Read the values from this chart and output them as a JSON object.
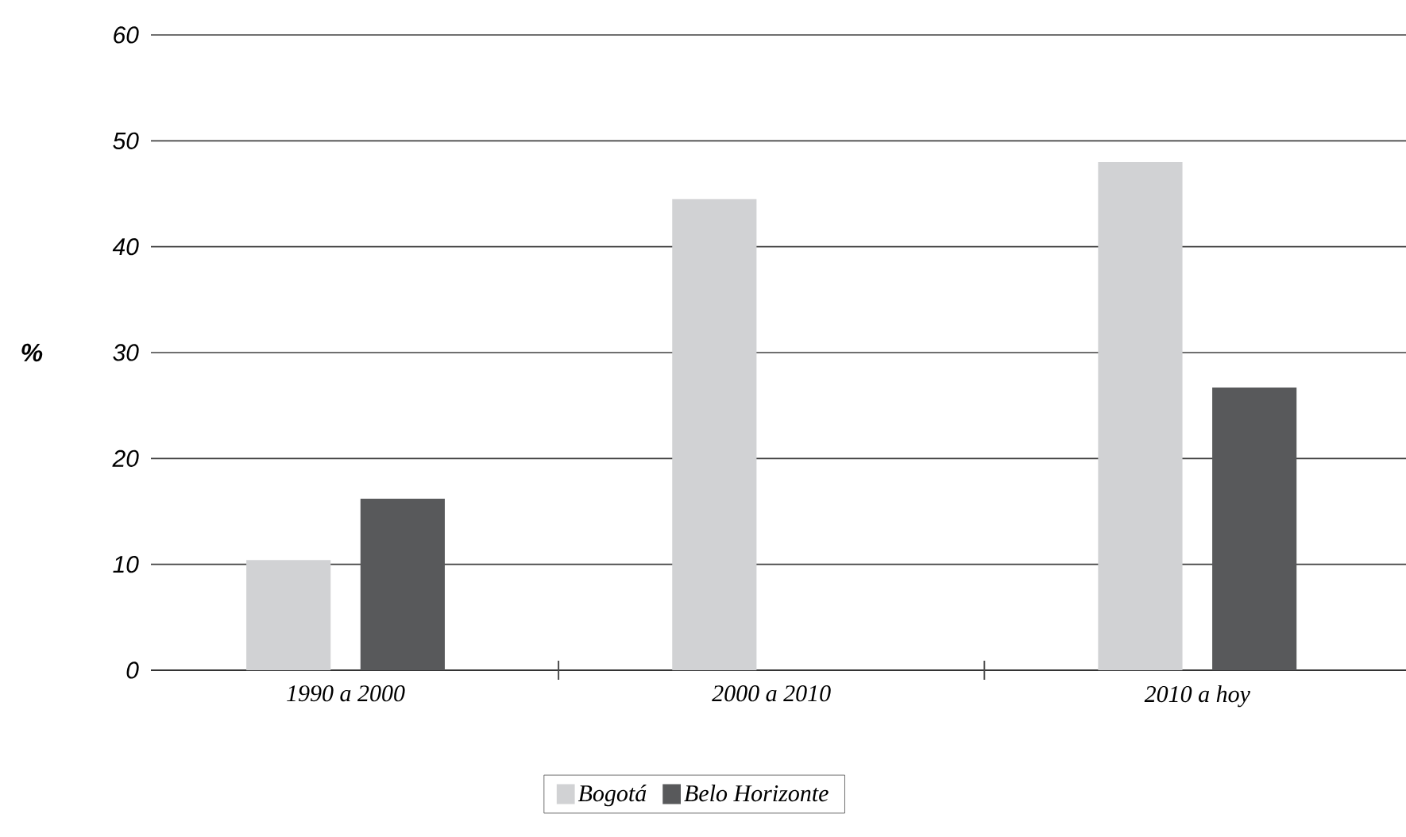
{
  "chart_data": {
    "type": "bar",
    "ylabel": "%",
    "categories": [
      "1990 a 2000",
      "2000 a 2010",
      "2010 a hoy"
    ],
    "series": [
      {
        "name": "Bogotá",
        "color": "#d1d2d4",
        "values": [
          10.4,
          44.5,
          48.0
        ]
      },
      {
        "name": "Belo Horizonte",
        "color": "#58595b",
        "values": [
          16.2,
          null,
          26.7
        ]
      }
    ],
    "ylim": [
      0,
      60
    ],
    "yticks": [
      0,
      10,
      20,
      30,
      40,
      50,
      60
    ],
    "grid": "y",
    "legend": "bottom"
  }
}
